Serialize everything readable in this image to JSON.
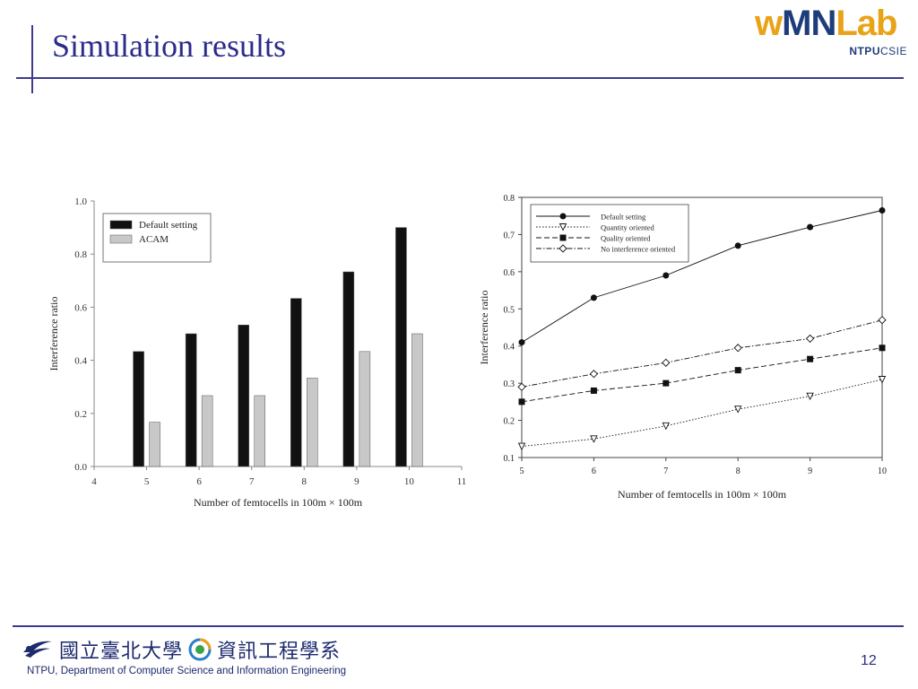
{
  "slide": {
    "title": "Simulation results",
    "page_number": "12",
    "logo": {
      "part1": "w",
      "part2": "MN",
      "part3": "Lab",
      "sub1": "NTPU",
      "sub2": "CSIE"
    },
    "footer": {
      "chinese_name": "國立臺北大學",
      "chinese_dept": "資訊工程學系",
      "english": "NTPU, Department of Computer Science and Information Engineering"
    }
  },
  "chart_data": [
    {
      "type": "bar",
      "x": [
        5,
        6,
        7,
        8,
        9,
        10
      ],
      "x_ticks": [
        "4",
        "5",
        "6",
        "7",
        "8",
        "9",
        "10",
        "11"
      ],
      "xlim": [
        4,
        11
      ],
      "series": [
        {
          "name": "Default setting",
          "values": [
            0.433,
            0.5,
            0.533,
            0.633,
            0.733,
            0.9
          ],
          "color": "#111111"
        },
        {
          "name": "ACAM",
          "values": [
            0.167,
            0.267,
            0.267,
            0.333,
            0.433,
            0.5
          ],
          "color": "#c8c8c8"
        }
      ],
      "xlabel": "Number of femtocells in 100m × 100m",
      "ylabel": "Interference ratio",
      "ylim": [
        0,
        1
      ],
      "y_ticks": [
        "0.0",
        "0.2",
        "0.4",
        "0.6",
        "0.8",
        "1.0"
      ],
      "legend": "top-left"
    },
    {
      "type": "line",
      "x": [
        5,
        6,
        7,
        8,
        9,
        10
      ],
      "x_ticks": [
        "5",
        "6",
        "7",
        "8",
        "9",
        "10"
      ],
      "series": [
        {
          "name": "Default setting",
          "values": [
            0.41,
            0.53,
            0.59,
            0.67,
            0.72,
            0.765
          ],
          "marker": "circle-filled",
          "dash": "solid"
        },
        {
          "name": "Quantity oriented",
          "values": [
            0.13,
            0.15,
            0.185,
            0.23,
            0.265,
            0.31
          ],
          "marker": "triangle-down-open",
          "dash": "dotted"
        },
        {
          "name": "Quality oriented",
          "values": [
            0.25,
            0.28,
            0.3,
            0.335,
            0.365,
            0.395
          ],
          "marker": "square-filled",
          "dash": "dashed"
        },
        {
          "name": "No interference oriented",
          "values": [
            0.29,
            0.325,
            0.355,
            0.395,
            0.42,
            0.47
          ],
          "marker": "diamond-open",
          "dash": "dashdot"
        }
      ],
      "xlabel": "Number of femtocells in 100m × 100m",
      "ylabel": "Interference ratio",
      "ylim": [
        0.1,
        0.8
      ],
      "y_ticks": [
        "0.1",
        "0.2",
        "0.3",
        "0.4",
        "0.5",
        "0.6",
        "0.7",
        "0.8"
      ],
      "legend": "top-left"
    }
  ]
}
